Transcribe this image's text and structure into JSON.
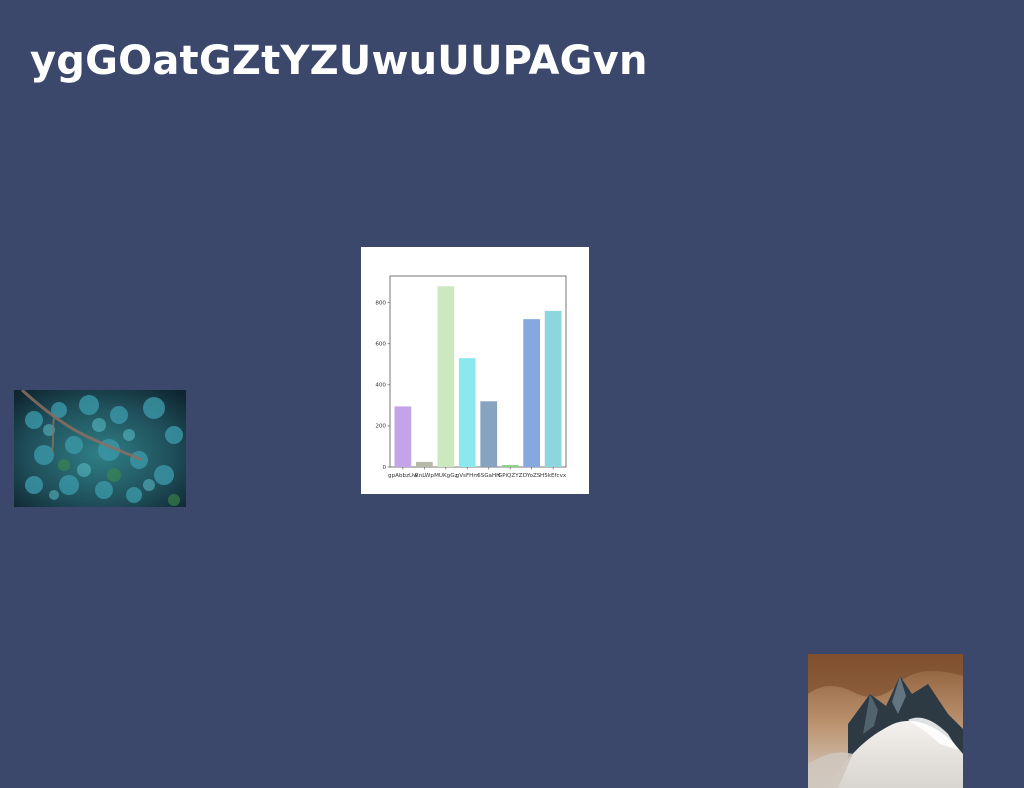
{
  "page": {
    "title": "ygGOatGZtYZUwuUUPAGvn",
    "background": "#3b486b"
  },
  "images": {
    "forest": {
      "subject": "aerial view of forest with road"
    },
    "mountain": {
      "subject": "snowy mountain peak under orange sky"
    }
  },
  "chart_data": {
    "type": "bar",
    "title": "",
    "xlabel": "",
    "ylabel": "",
    "categories": [
      "gpAbbzUw",
      "RnLWp",
      "MUKgGz",
      "gVsFHm",
      "6SGaHH",
      "GPiQZYZ",
      "DYoZS",
      "H5kEfcvx"
    ],
    "values": [
      295,
      25,
      880,
      530,
      320,
      10,
      720,
      760
    ],
    "colors": [
      "#c3a4e8",
      "#b8b8a8",
      "#cbe8bf",
      "#8ae8ee",
      "#86a3c0",
      "#8fd28f",
      "#86a8e0",
      "#8cd6de"
    ],
    "ylim": [
      0,
      930
    ],
    "yticks": [
      0,
      200,
      400,
      600,
      800
    ],
    "grid": false
  }
}
